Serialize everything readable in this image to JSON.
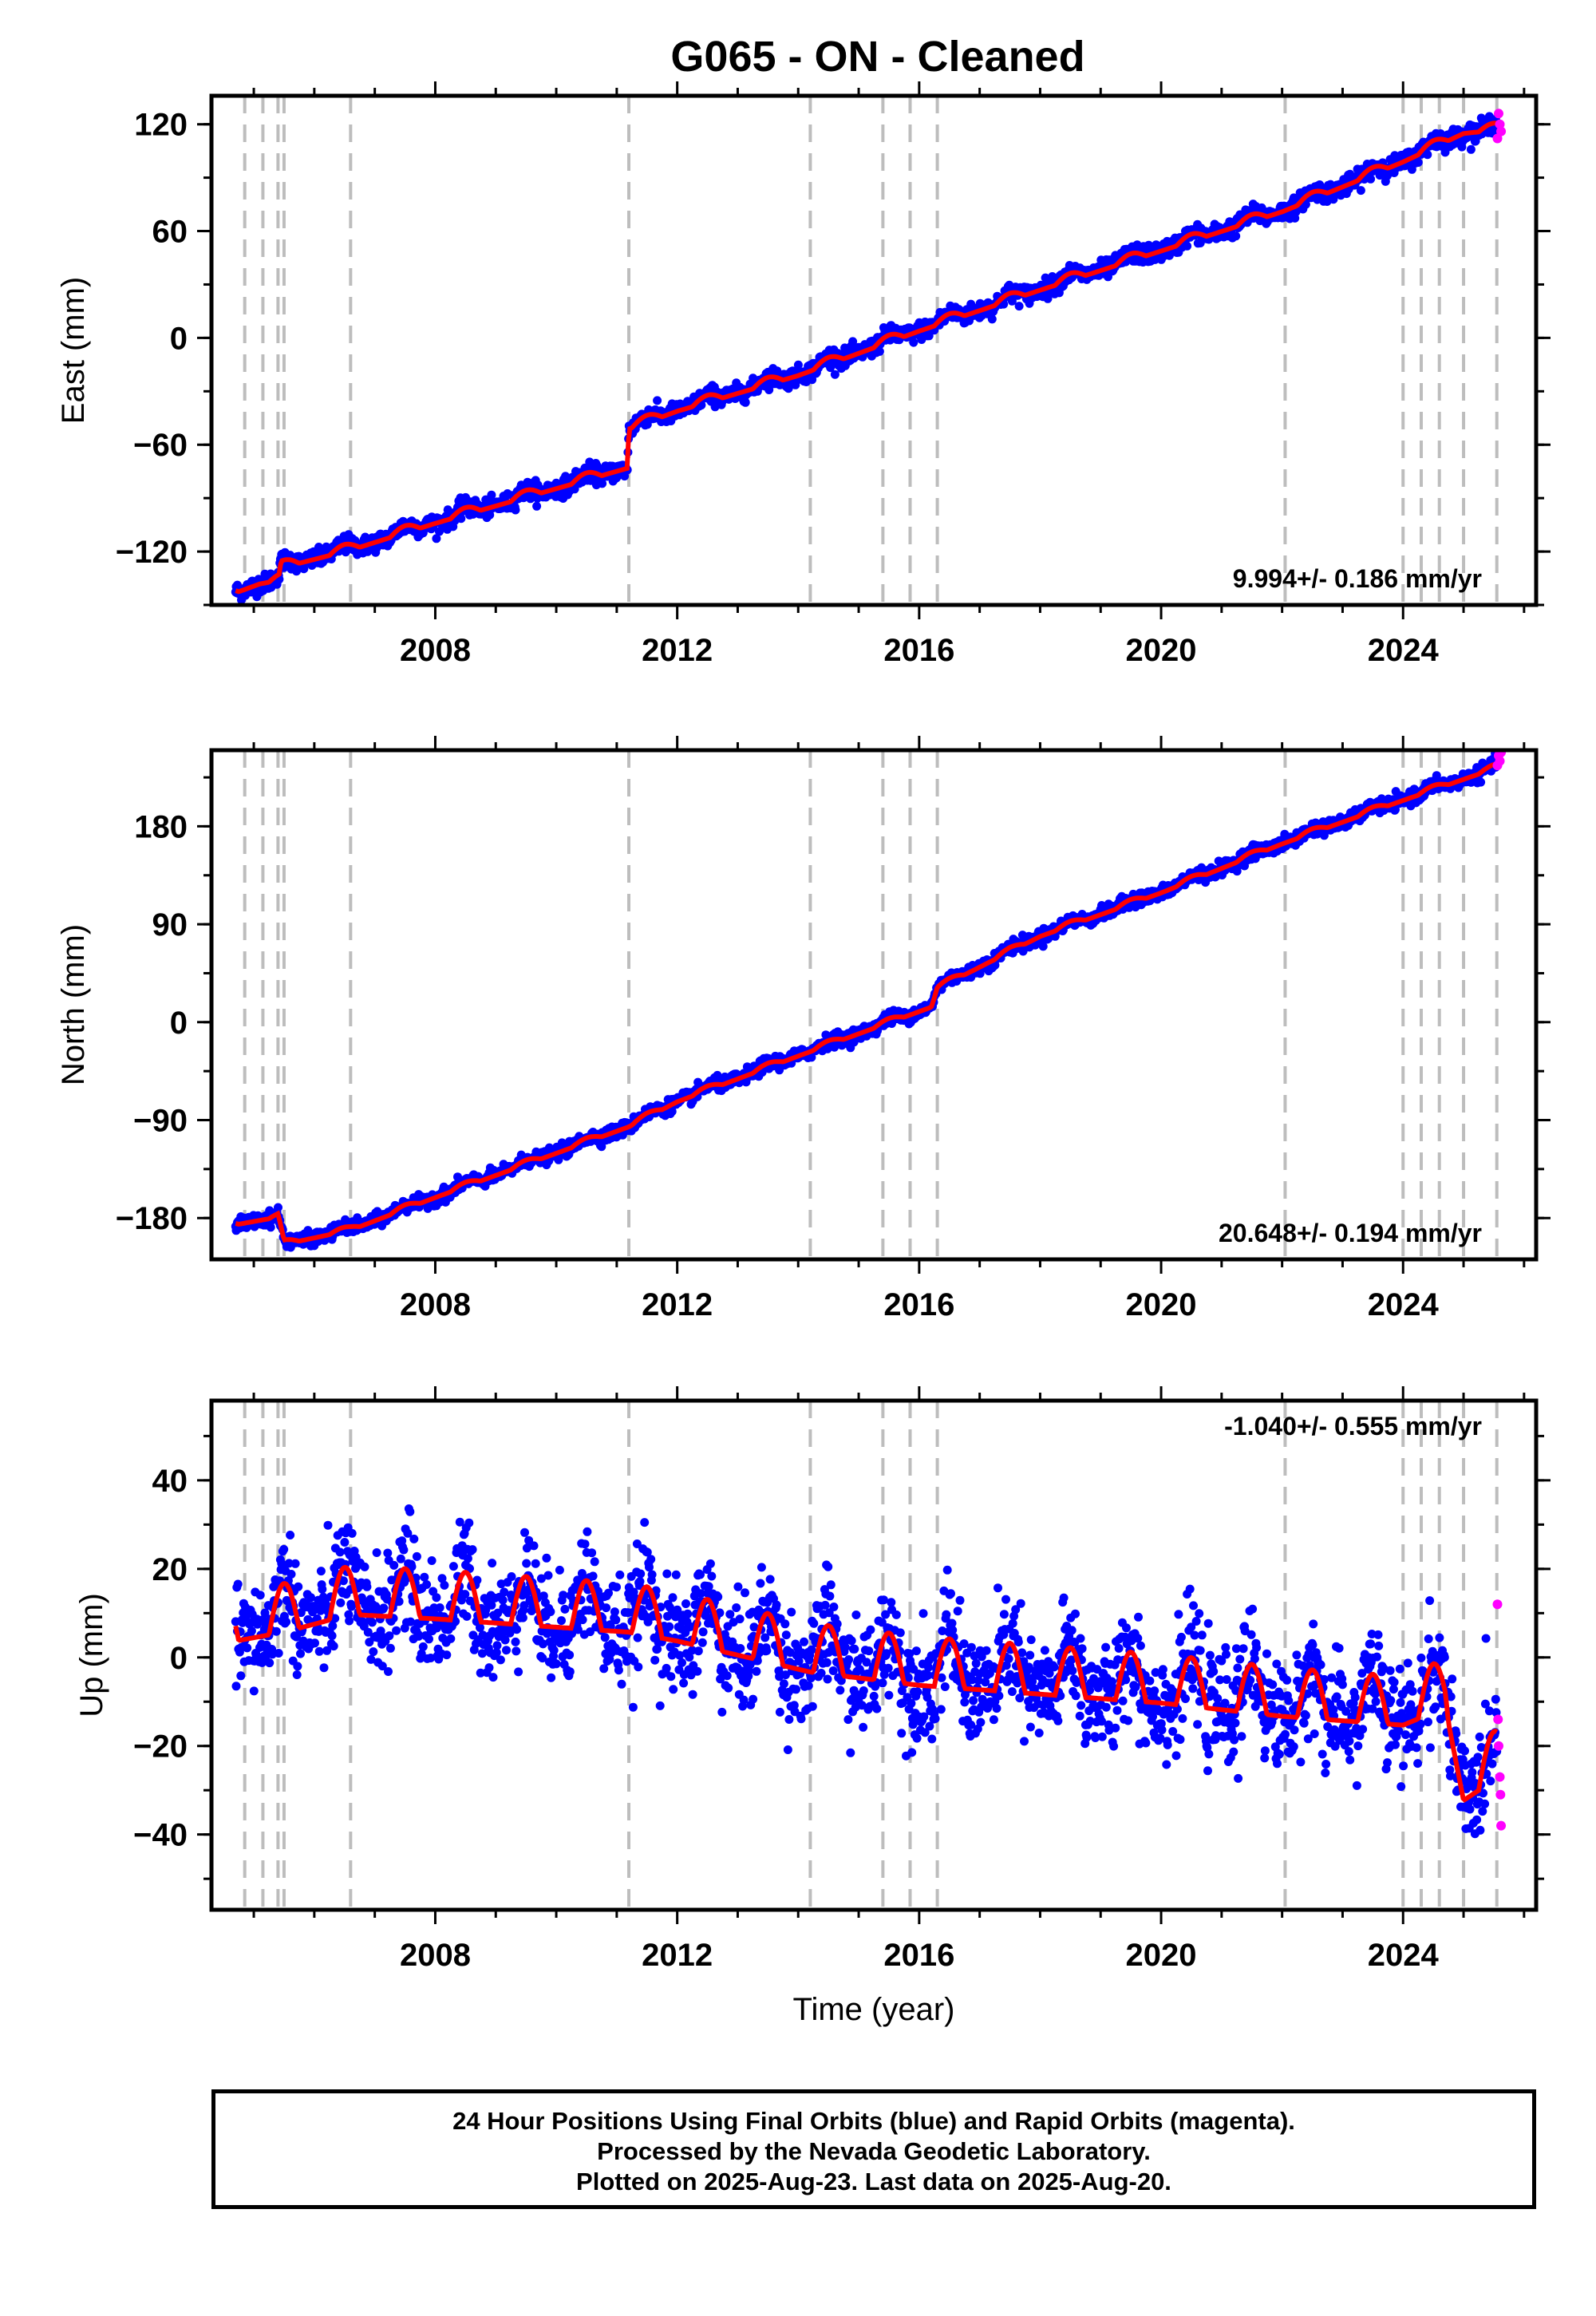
{
  "title": "G065  - ON - Cleaned",
  "colors": {
    "final": "#0000ff",
    "rapid": "#ff00ff",
    "model": "#ff0000",
    "event_lines": "#bdbdbd"
  },
  "footer": {
    "line1": "24 Hour Positions Using Final Orbits (blue) and Rapid Orbits (magenta).",
    "line2": "Processed by the Nevada Geodetic Laboratory.",
    "line3": "Plotted on 2025-Aug-23. Last data on 2025-Aug-20."
  },
  "chart_data": [
    {
      "type": "scatter",
      "ylabel": "East (mm)",
      "xlabel": "",
      "xlim": [
        2004.3,
        2026.2
      ],
      "ylim": [
        -150,
        136
      ],
      "xticks": [
        2008,
        2012,
        2016,
        2020,
        2024
      ],
      "yticks": [
        -120,
        -60,
        0,
        60,
        120
      ],
      "rate_text": "9.994+/- 0.186 mm/yr",
      "event_lines": [
        2004.85,
        2005.15,
        2005.4,
        2005.5,
        2006.6,
        2011.2,
        2014.2,
        2015.4,
        2015.85,
        2016.3,
        2022.05,
        2024.0,
        2024.3,
        2024.6,
        2025.0,
        2025.55
      ],
      "model": {
        "x": [
          2004.7,
          2005.1,
          2005.42,
          2005.45,
          2006.6,
          2008.0,
          2011.18,
          2011.2,
          2012.0,
          2014.0,
          2016.0,
          2018.0,
          2020.0,
          2022.0,
          2024.0,
          2025.0,
          2025.55
        ],
        "y": [
          -142,
          -137,
          -135,
          -128,
          -118,
          -103,
          -72,
          -50,
          -40,
          -20,
          5,
          28,
          50,
          72,
          100,
          116,
          118
        ]
      },
      "rapid": {
        "x": [
          2025.56,
          2025.58,
          2025.6,
          2025.62
        ],
        "y": [
          112,
          126,
          120,
          116
        ]
      },
      "noise_mm": 2.5,
      "seasonal_amp_mm": 2
    },
    {
      "type": "scatter",
      "ylabel": "North (mm)",
      "xlabel": "",
      "xlim": [
        2004.3,
        2026.2
      ],
      "ylim": [
        -218,
        250
      ],
      "xticks": [
        2008,
        2012,
        2016,
        2020,
        2024
      ],
      "yticks": [
        -180,
        -90,
        0,
        90,
        180
      ],
      "rate_text": "20.648+/- 0.194 mm/yr",
      "event_lines": [
        2004.85,
        2005.15,
        2005.4,
        2005.5,
        2006.6,
        2011.2,
        2014.2,
        2015.4,
        2015.85,
        2016.3,
        2022.05,
        2024.0,
        2024.3,
        2024.6,
        2025.0,
        2025.55
      ],
      "model": {
        "x": [
          2004.7,
          2005.4,
          2005.5,
          2006.6,
          2008.0,
          2011.2,
          2012.0,
          2014.0,
          2016.2,
          2016.3,
          2018.0,
          2020.0,
          2022.0,
          2024.0,
          2025.55
        ],
        "y": [
          -185,
          -178,
          -203,
          -190,
          -160,
          -95,
          -72,
          -30,
          15,
          32,
          80,
          120,
          165,
          205,
          235
        ]
      },
      "rapid": {
        "x": [
          2025.56,
          2025.58,
          2025.6,
          2025.62
        ],
        "y": [
          236,
          245,
          240,
          248
        ]
      },
      "noise_mm": 3,
      "seasonal_amp_mm": 2
    },
    {
      "type": "scatter",
      "ylabel": "Up (mm)",
      "xlabel": "Time (year)",
      "xlim": [
        2004.3,
        2026.2
      ],
      "ylim": [
        -57,
        58
      ],
      "xticks": [
        2008,
        2012,
        2016,
        2020,
        2024
      ],
      "yticks": [
        -40,
        -20,
        0,
        20,
        40
      ],
      "rate_text": "-1.040+/- 0.555 mm/yr",
      "event_lines": [
        2004.85,
        2005.15,
        2005.4,
        2005.5,
        2006.6,
        2011.2,
        2014.2,
        2015.4,
        2015.85,
        2016.3,
        2022.05,
        2024.0,
        2024.3,
        2024.6,
        2025.0,
        2025.55
      ],
      "model": {
        "x": [
          2004.7,
          2005.5,
          2006.6,
          2008.0,
          2011.2,
          2012.0,
          2014.2,
          2016.0,
          2018.0,
          2020.0,
          2022.0,
          2024.0,
          2024.7,
          2025.0,
          2025.55
        ],
        "y": [
          7,
          9,
          13,
          12,
          9,
          7,
          0,
          -3,
          -5,
          -7,
          -10,
          -12,
          -8,
          -29,
          -24
        ]
      },
      "rapid": {
        "x": [
          2025.56,
          2025.57,
          2025.58,
          2025.6,
          2025.61,
          2025.62
        ],
        "y": [
          12,
          -14,
          -20,
          -27,
          -31,
          -38
        ]
      },
      "noise_mm": 6,
      "seasonal_amp_mm": 5.5
    }
  ]
}
